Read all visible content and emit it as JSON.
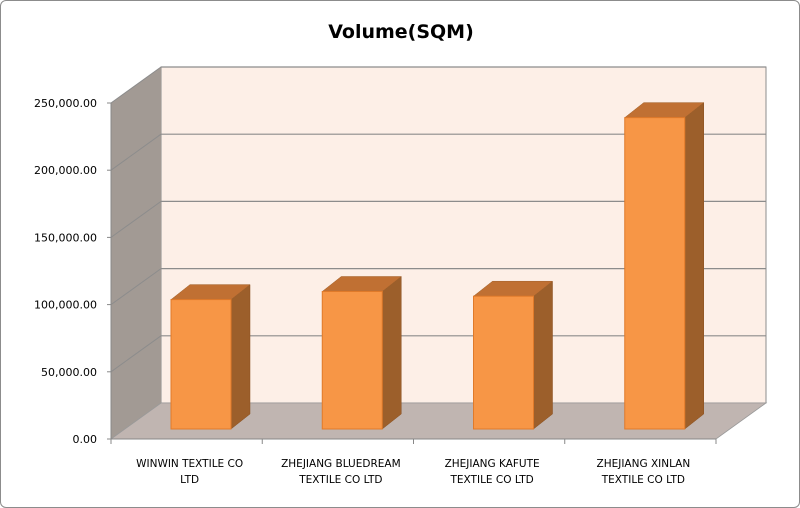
{
  "chart_data": {
    "type": "bar",
    "title": "Volume(SQM)",
    "xlabel": "",
    "ylabel": "",
    "ylim": [
      0,
      250000
    ],
    "yticks": [
      "0.00",
      "50,000.00",
      "100,000.00",
      "150,000.00",
      "200,000.00",
      "250,000.00"
    ],
    "categories": [
      [
        "WINWIN TEXTILE CO",
        "LTD"
      ],
      [
        "ZHEJIANG BLUEDREAM",
        "TEXTILE CO LTD"
      ],
      [
        "ZHEJIANG KAFUTE",
        "TEXTILE CO LTD"
      ],
      [
        "ZHEJIANG XINLAN",
        "TEXTILE CO LTD"
      ]
    ],
    "values": [
      96000,
      102000,
      98500,
      231000
    ],
    "grid": true,
    "legend": "none",
    "colors": {
      "bar_front": "#f79646",
      "bar_top": "#c07033",
      "bar_side": "#9c5f2b",
      "wall": "#fdefe7",
      "side_wall": "#a29a94",
      "floor": "#c0b5b1",
      "grid": "#8c8c8c"
    }
  }
}
